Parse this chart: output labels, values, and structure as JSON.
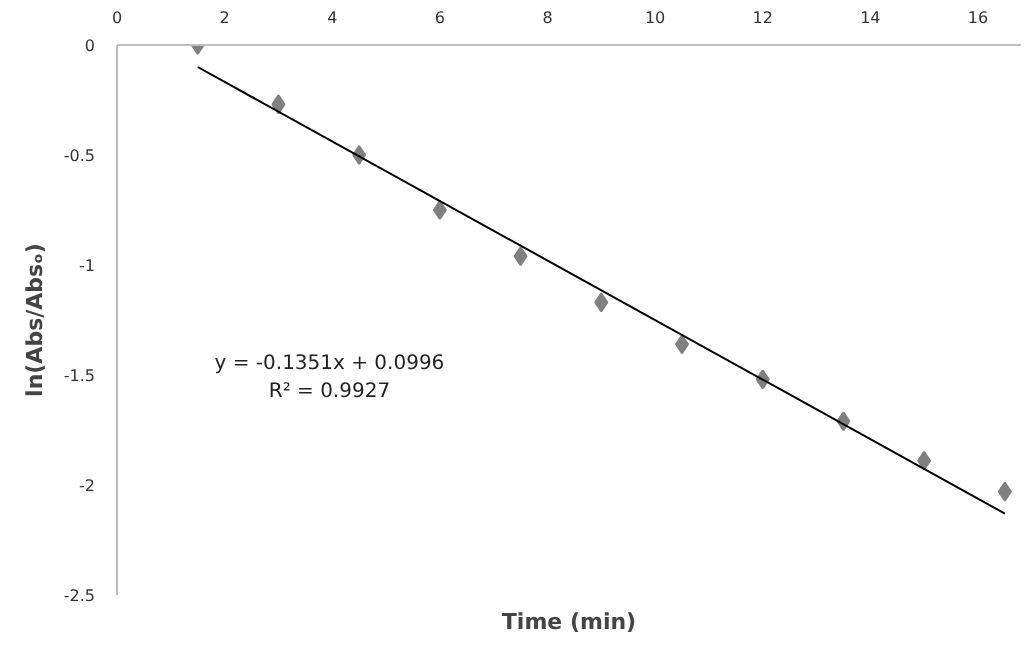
{
  "chart_data": {
    "type": "scatter",
    "xlabel": "Time (min)",
    "ylabel": "ln(Abs/Absₒ)",
    "x": [
      1.5,
      3,
      4.5,
      6,
      7.5,
      9,
      10.5,
      12,
      13.5,
      15,
      16.5
    ],
    "series": [
      {
        "color": "#808080",
        "marker": "diamond",
        "values": [
          0,
          -0.27,
          -0.5,
          -0.75,
          -0.96,
          -1.17,
          -1.36,
          -1.52,
          -1.71,
          -1.89,
          -2.03
        ]
      },
      {
        "type": "line",
        "color": "#000000",
        "x": [
          1.5,
          16.5
        ],
        "values": [
          -0.1,
          -2.13
        ]
      }
    ],
    "annotations": [
      "y = -0.1351x + 0.0996",
      "R² = 0.9927"
    ],
    "xlim": [
      0,
      16.8
    ],
    "ylim": [
      -2.5,
      0
    ],
    "xticks": [
      0,
      2,
      4,
      6,
      8,
      10,
      12,
      14,
      16
    ],
    "yticks": [
      0,
      -0.5,
      -1,
      -1.5,
      -2,
      -2.5
    ],
    "grid": false
  }
}
